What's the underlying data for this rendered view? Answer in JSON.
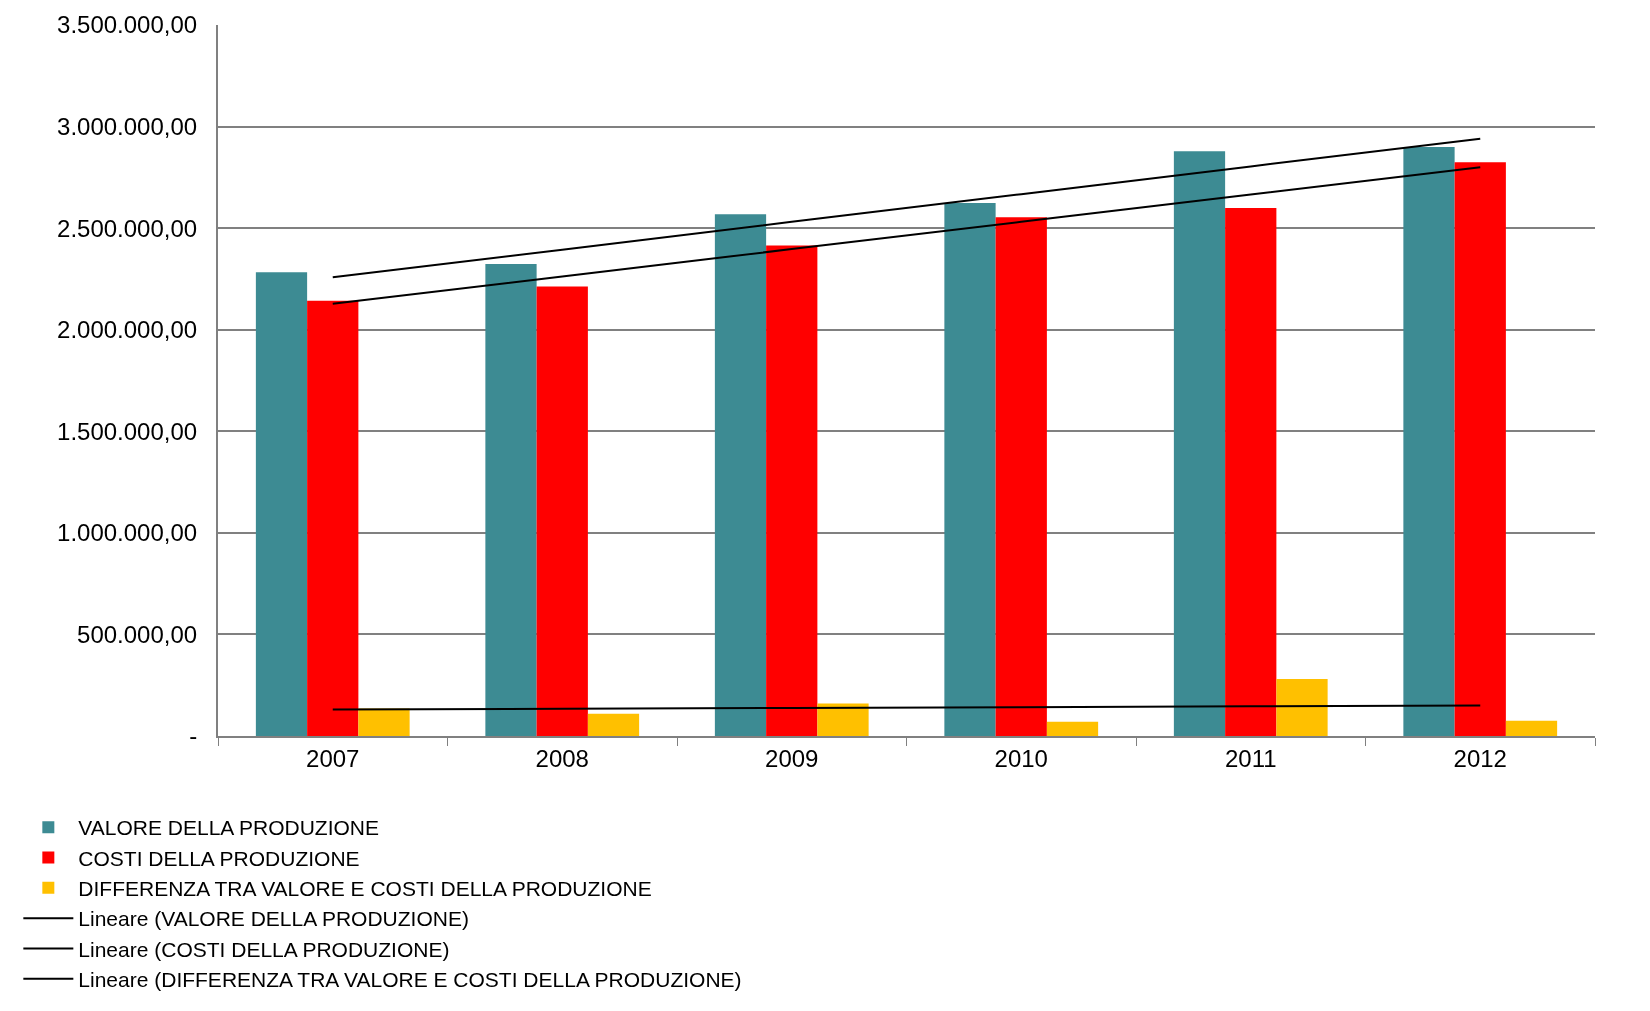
{
  "chart_data": {
    "type": "bar",
    "categories": [
      "2007",
      "2008",
      "2009",
      "2010",
      "2011",
      "2012"
    ],
    "series": [
      {
        "name": "VALORE DELLA PRODUZIONE",
        "color": "#3d8b93",
        "values": [
          2283000,
          2323000,
          2569000,
          2624000,
          2879000,
          2899000
        ]
      },
      {
        "name": "COSTI DELLA PRODUZIONE",
        "color": "#ff0000",
        "values": [
          2143000,
          2213000,
          2414000,
          2554000,
          2599000,
          2824000
        ]
      },
      {
        "name": "DIFFERENZA TRA VALORE E COSTI DELLA PRODUZIONE",
        "color": "#ffc000",
        "values": [
          135000,
          110000,
          160000,
          70000,
          280000,
          75000
        ]
      },
      {
        "name": "Lineare (VALORE DELLA PRODUZIONE)",
        "type": "line",
        "color": "#000000",
        "values": [
          2258000,
          2394000,
          2531000,
          2667000,
          2804000,
          2940000
        ]
      },
      {
        "name": "Lineare (COSTI DELLA PRODUZIONE)",
        "type": "line",
        "color": "#000000",
        "values": [
          2128000,
          2262000,
          2397000,
          2531000,
          2666000,
          2800000
        ]
      },
      {
        "name": "Lineare (DIFFERENZA TRA VALORE E COSTI DELLA PRODUZIONE)",
        "type": "line",
        "color": "#000000",
        "values": [
          130000,
          134000,
          138000,
          142000,
          146000,
          150000
        ]
      }
    ],
    "ylim": [
      0,
      3500000
    ],
    "yticks": [
      {
        "value": 0,
        "label": "-"
      },
      {
        "value": 500000,
        "label": "500.000,00"
      },
      {
        "value": 1000000,
        "label": "1.000.000,00"
      },
      {
        "value": 1500000,
        "label": "1.500.000,00"
      },
      {
        "value": 2000000,
        "label": "2.000.000,00"
      },
      {
        "value": 2500000,
        "label": "2.500.000,00"
      },
      {
        "value": 3000000,
        "label": "3.000.000,00"
      },
      {
        "value": 3500000,
        "label": "3.500.000,00"
      }
    ],
    "grid": "y",
    "legend": "bottom"
  }
}
